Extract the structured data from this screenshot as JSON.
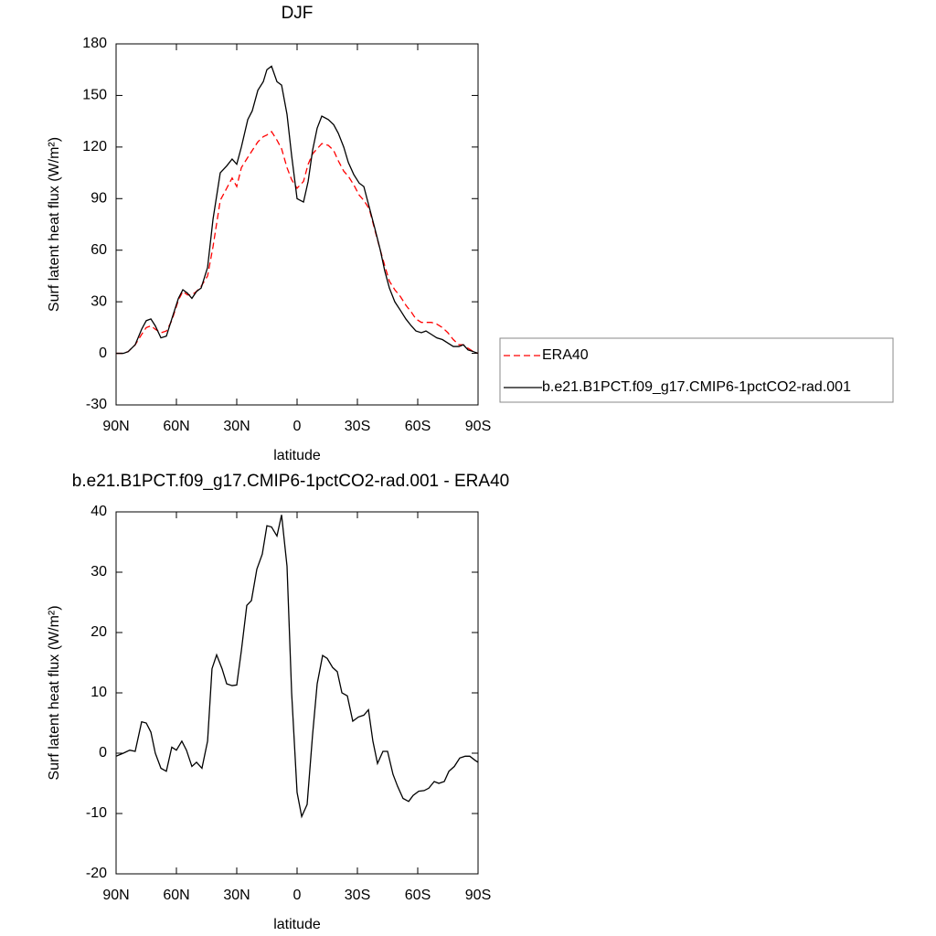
{
  "chart_data": [
    {
      "type": "line",
      "title": "DJF",
      "xlabel": "latitude",
      "ylabel": "Surf latent heat flux (W/m²)",
      "xlim": [
        90,
        -90
      ],
      "ylim": [
        -30,
        180
      ],
      "xticks": [
        {
          "value": 90,
          "label": "90N"
        },
        {
          "value": 60,
          "label": "60N"
        },
        {
          "value": 30,
          "label": "30N"
        },
        0,
        {
          "value": -30,
          "label": "30S"
        },
        {
          "value": -60,
          "label": "60S"
        },
        {
          "value": -90,
          "label": "90S"
        }
      ],
      "yticks": [
        -30,
        0,
        30,
        60,
        90,
        120,
        150,
        180
      ],
      "legend": "outside right",
      "x": [
        90,
        86.4,
        84,
        80.5,
        77.3,
        75,
        72.7,
        70.5,
        67.7,
        65,
        62.3,
        59,
        56.8,
        54.5,
        52.3,
        50,
        47.7,
        44.5,
        41.8,
        38.2,
        35,
        32.3,
        30,
        27.7,
        24.5,
        22.3,
        19.5,
        16.8,
        15,
        12.7,
        10,
        7.7,
        5,
        2.7,
        0,
        -3.2,
        -5.5,
        -7.7,
        -10,
        -12.3,
        -15.5,
        -18.2,
        -20.5,
        -23.2,
        -25.5,
        -28.2,
        -30.9,
        -33.2,
        -35.9,
        -38.6,
        -41.4,
        -43.6,
        -45.9,
        -48.6,
        -51.4,
        -54.1,
        -56.8,
        -59.1,
        -61.8,
        -64.1,
        -66.8,
        -69.5,
        -72.3,
        -75,
        -77.7,
        -80.5,
        -82.7,
        -85,
        -87.7,
        -90
      ],
      "series": [
        {
          "name": "ERA40",
          "color": "#ff0000",
          "dash": "dashed",
          "values": [
            0,
            0,
            1,
            5,
            11,
            15,
            16,
            14,
            12,
            13,
            19,
            31,
            36,
            34,
            34,
            36,
            39,
            45,
            62,
            89,
            96,
            102,
            97,
            108,
            114,
            118,
            123,
            126,
            127,
            129,
            124,
            119,
            108,
            101,
            96,
            100,
            110,
            116,
            119,
            122,
            121,
            118,
            112,
            106,
            103,
            98,
            92,
            89,
            84,
            72,
            60,
            51,
            42,
            37,
            33,
            28,
            24,
            20,
            18,
            18,
            18,
            17,
            15,
            12,
            8,
            5,
            5,
            3,
            1,
            0
          ]
        },
        {
          "name": "b.e21.B1PCT.f09_g17.CMIP6-1pctCO2-rad.001",
          "color": "#000000",
          "dash": "solid",
          "values": [
            0,
            0,
            1,
            5,
            14,
            19,
            20,
            16,
            9,
            10,
            20,
            32,
            37,
            35,
            32,
            36,
            38,
            50,
            78,
            105,
            109,
            113,
            110,
            120,
            136,
            141,
            153,
            158,
            165,
            167,
            158,
            156,
            139,
            115,
            90,
            88,
            100,
            118,
            131,
            138,
            136,
            133,
            128,
            120,
            111,
            104,
            99,
            97,
            85,
            73,
            60,
            48,
            38,
            30,
            25,
            20,
            16,
            13,
            12,
            13,
            11,
            9,
            8,
            6,
            4,
            4,
            5,
            2,
            1,
            0
          ]
        }
      ]
    },
    {
      "type": "line",
      "title": "b.e21.B1PCT.f09_g17.CMIP6-1pctCO2-rad.001 - ERA40",
      "xlabel": "latitude",
      "ylabel": "Surf latent heat flux (W/m²)",
      "xlim": [
        90,
        -90
      ],
      "ylim": [
        -20,
        40
      ],
      "xticks": [
        {
          "value": 90,
          "label": "90N"
        },
        {
          "value": 60,
          "label": "60N"
        },
        {
          "value": 30,
          "label": "30N"
        },
        0,
        {
          "value": -30,
          "label": "30S"
        },
        {
          "value": -60,
          "label": "60S"
        },
        {
          "value": -90,
          "label": "90S"
        }
      ],
      "yticks": [
        -20,
        -10,
        0,
        10,
        20,
        30,
        40
      ],
      "x": [
        90,
        86.4,
        83.2,
        80.5,
        77.3,
        75,
        72.7,
        70.5,
        67.7,
        65,
        62.3,
        60,
        57.3,
        55,
        52.3,
        50,
        47.3,
        44.5,
        42.3,
        40,
        37.3,
        35,
        32.3,
        30,
        27.7,
        25,
        22.7,
        20,
        17.3,
        15,
        12.7,
        10,
        7.7,
        5,
        2.7,
        0,
        -2.3,
        -5,
        -7.7,
        -10,
        -12.7,
        -15,
        -17.7,
        -20,
        -22.3,
        -25,
        -27.7,
        -30.5,
        -33.2,
        -35.5,
        -37.7,
        -40,
        -42.7,
        -45,
        -47.7,
        -50,
        -52.7,
        -55.5,
        -57.7,
        -60.5,
        -63.2,
        -65.5,
        -68.2,
        -70.5,
        -73.2,
        -75.5,
        -78.2,
        -80.9,
        -83.6,
        -85.9,
        -88.6,
        -90
      ],
      "series": [
        {
          "color": "#000000",
          "dash": "solid",
          "values": [
            -0.5,
            0,
            0.5,
            0.3,
            5.2,
            5,
            3.5,
            0,
            -2.5,
            -3,
            1,
            0.5,
            2,
            0.5,
            -2.2,
            -1.5,
            -2.5,
            2,
            14,
            16.3,
            14,
            11.5,
            11.2,
            11.3,
            17,
            24.5,
            25.3,
            30.5,
            33,
            37.7,
            37.5,
            36,
            39.5,
            31,
            10,
            -6.5,
            -10.5,
            -8.5,
            3,
            11.5,
            16.2,
            15.7,
            14.2,
            13.5,
            10,
            9.5,
            5.3,
            6,
            6.3,
            7.2,
            2,
            -1.7,
            0.3,
            0.3,
            -3.5,
            -5.5,
            -7.5,
            -8,
            -7,
            -6.3,
            -6.2,
            -5.8,
            -4.7,
            -5,
            -4.7,
            -3,
            -2.2,
            -0.8,
            -0.5,
            -0.5,
            -1.2,
            -1.5
          ]
        }
      ]
    }
  ]
}
